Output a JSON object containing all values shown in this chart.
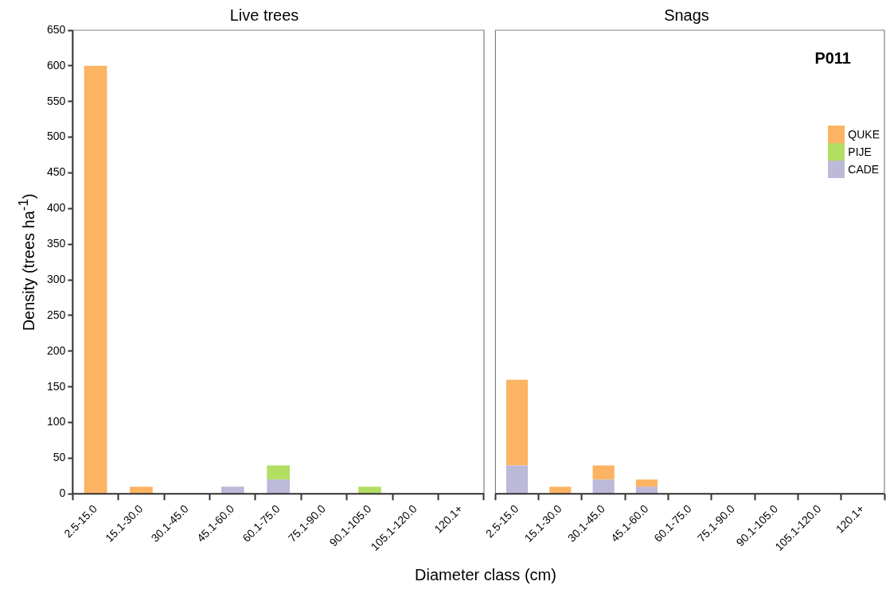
{
  "chart_data": [
    {
      "type": "bar",
      "title": "Live trees",
      "xlabel": "Diameter class (cm)",
      "ylabel": "Density (trees ha$^{-1}$)",
      "stacked": true,
      "grid": false,
      "legend": false,
      "categories": [
        "2.5-15.0",
        "15.1-30.0",
        "30.1-45.0",
        "45.1-60.0",
        "60.1-75.0",
        "75.1-90.0",
        "90.1-105.0",
        "105.1-120.0",
        "120.1+"
      ],
      "series": [
        {
          "color": "#bcb9d9",
          "values": [
            0,
            0,
            0,
            10,
            20,
            0,
            0,
            0,
            0
          ]
        },
        {
          "color": "#b2de62",
          "values": [
            0,
            0,
            0,
            0,
            20,
            0,
            10,
            0,
            0
          ]
        },
        {
          "color": "#fcb362",
          "values": [
            600,
            10,
            0,
            0,
            0,
            0,
            0,
            0,
            0
          ]
        }
      ],
      "ylim": [
        0,
        650
      ],
      "yticks": [
        0,
        50,
        100,
        150,
        200,
        250,
        300,
        350,
        400,
        450,
        500,
        550,
        600,
        650
      ]
    },
    {
      "type": "bar",
      "title": "Snags",
      "stacked": true,
      "grid": false,
      "legend": "right",
      "tick_labels": "x",
      "annotations": [
        "P011"
      ],
      "categories": [
        "2.5-15.0",
        "15.1-30.0",
        "30.1-45.0",
        "45.1-60.0",
        "60.1-75.0",
        "75.1-90.0",
        "90.1-105.0",
        "105.1-120.0",
        "120.1+"
      ],
      "series": [
        {
          "name": "CADE",
          "color": "#bcb9d9",
          "values": [
            40,
            0,
            20,
            10,
            0,
            0,
            0,
            0,
            0
          ]
        },
        {
          "name": "PIJE",
          "color": "#b2de62",
          "values": [
            0,
            0,
            0,
            0,
            0,
            0,
            0,
            0,
            0
          ]
        },
        {
          "name": "QUKE",
          "color": "#fcb362",
          "values": [
            120,
            10,
            20,
            10,
            0,
            0,
            0,
            0,
            0
          ]
        }
      ],
      "ylim": [
        0,
        650
      ],
      "yticks": [
        0,
        50,
        100,
        150,
        200,
        250,
        300,
        350,
        400,
        450,
        500,
        550,
        600,
        650
      ]
    }
  ]
}
